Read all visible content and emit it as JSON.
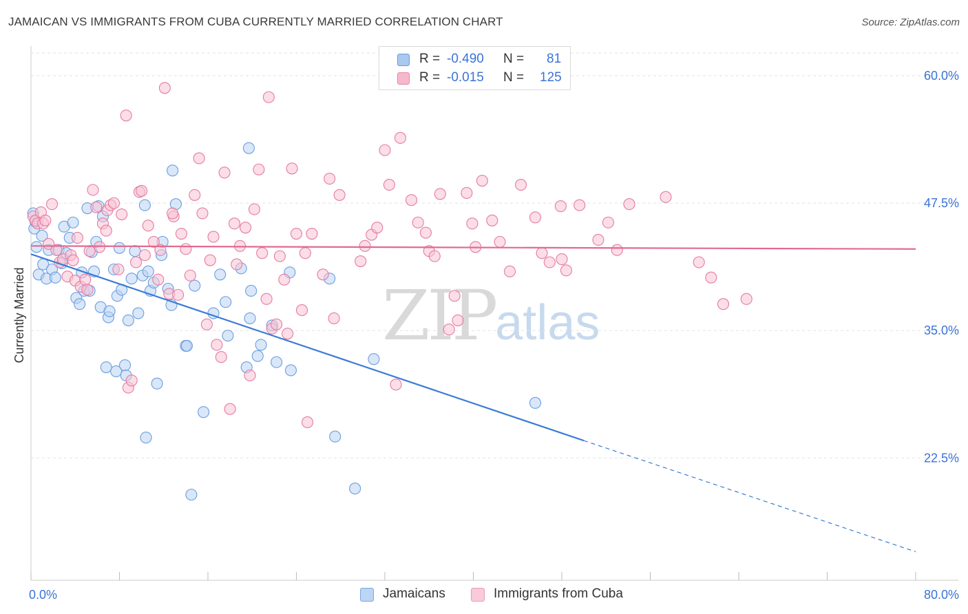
{
  "header": {
    "title": "JAMAICAN VS IMMIGRANTS FROM CUBA CURRENTLY MARRIED CORRELATION CHART",
    "source": "Source: ZipAtlas.com"
  },
  "watermark": {
    "zip": "ZIP",
    "atlas": "atlas"
  },
  "legend_top": {
    "rows": [
      {
        "r_label": "R =",
        "r_value": "-0.490",
        "n_label": "N =",
        "n_value": "81",
        "color": "#a9c8f0",
        "border": "#6b9bd8"
      },
      {
        "r_label": "R =",
        "r_value": "-0.015",
        "n_label": "N =",
        "n_value": "125",
        "color": "#f6b8cb",
        "border": "#e589a6"
      }
    ]
  },
  "legend_bottom": [
    {
      "label": "Jamaicans",
      "color": "#bcd5f5",
      "border": "#7aa6de"
    },
    {
      "label": "Immigrants from Cuba",
      "color": "#f9cad8",
      "border": "#eb9bb4"
    }
  ],
  "chart_data": {
    "type": "scatter",
    "title": "JAMAICAN VS IMMIGRANTS FROM CUBA CURRENTLY MARRIED CORRELATION CHART",
    "xlabel": "",
    "ylabel": "Currently Married",
    "xlim": [
      0,
      80
    ],
    "ylim": [
      10.5,
      62.5
    ],
    "x_tick_labels": [
      "0.0%",
      "80.0%"
    ],
    "y_ticks": [
      22.5,
      35.0,
      47.5,
      60.0
    ],
    "y_tick_labels": [
      "22.5%",
      "35.0%",
      "47.5%",
      "60.0%"
    ],
    "grid": true,
    "legend_position": "top-center",
    "series": [
      {
        "name": "Jamaicans",
        "color": "#6a9ee0",
        "fill": "#b9d3f3",
        "trend": {
          "x": [
            0,
            50
          ],
          "y": [
            42.5,
            24.2
          ],
          "dashed_to": [
            80,
            13.3
          ]
        },
        "points": [
          [
            0.2,
            46.5
          ],
          [
            0.3,
            45.0
          ],
          [
            0.5,
            43.2
          ],
          [
            0.7,
            40.5
          ],
          [
            1.0,
            44.3
          ],
          [
            1.1,
            41.5
          ],
          [
            1.4,
            40.1
          ],
          [
            1.6,
            42.9
          ],
          [
            1.9,
            41.0
          ],
          [
            2.2,
            40.2
          ],
          [
            2.5,
            42.9
          ],
          [
            2.8,
            41.6
          ],
          [
            3.0,
            45.2
          ],
          [
            3.2,
            42.6
          ],
          [
            3.8,
            45.6
          ],
          [
            4.1,
            38.2
          ],
          [
            4.4,
            37.6
          ],
          [
            4.6,
            40.7
          ],
          [
            4.8,
            38.9
          ],
          [
            5.1,
            47.0
          ],
          [
            5.3,
            38.9
          ],
          [
            5.5,
            42.7
          ],
          [
            5.7,
            40.8
          ],
          [
            5.9,
            43.7
          ],
          [
            6.1,
            47.2
          ],
          [
            6.3,
            37.3
          ],
          [
            6.5,
            46.2
          ],
          [
            6.8,
            31.4
          ],
          [
            7.0,
            36.3
          ],
          [
            7.1,
            36.9
          ],
          [
            7.5,
            41.0
          ],
          [
            7.7,
            31.0
          ],
          [
            7.8,
            38.4
          ],
          [
            8.0,
            43.1
          ],
          [
            8.2,
            39.0
          ],
          [
            8.5,
            31.6
          ],
          [
            8.6,
            30.6
          ],
          [
            8.8,
            36.0
          ],
          [
            9.1,
            40.1
          ],
          [
            9.4,
            42.8
          ],
          [
            9.7,
            36.7
          ],
          [
            10.1,
            40.4
          ],
          [
            10.3,
            47.3
          ],
          [
            10.4,
            24.5
          ],
          [
            10.6,
            40.8
          ],
          [
            10.8,
            38.9
          ],
          [
            11.1,
            39.7
          ],
          [
            11.4,
            29.8
          ],
          [
            11.8,
            42.4
          ],
          [
            11.9,
            43.7
          ],
          [
            12.4,
            39.1
          ],
          [
            12.7,
            37.5
          ],
          [
            12.8,
            50.7
          ],
          [
            13.1,
            47.4
          ],
          [
            14.0,
            33.5
          ],
          [
            14.1,
            33.5
          ],
          [
            14.5,
            18.9
          ],
          [
            14.8,
            39.4
          ],
          [
            15.6,
            27.0
          ],
          [
            16.5,
            36.7
          ],
          [
            17.1,
            40.5
          ],
          [
            17.6,
            37.8
          ],
          [
            17.8,
            34.5
          ],
          [
            19.0,
            41.1
          ],
          [
            19.5,
            31.4
          ],
          [
            19.7,
            52.9
          ],
          [
            19.8,
            36.2
          ],
          [
            19.9,
            38.9
          ],
          [
            20.5,
            32.5
          ],
          [
            20.8,
            33.6
          ],
          [
            21.8,
            35.5
          ],
          [
            22.2,
            31.9
          ],
          [
            23.4,
            40.7
          ],
          [
            23.5,
            31.1
          ],
          [
            27.0,
            40.1
          ],
          [
            27.5,
            24.6
          ],
          [
            29.3,
            19.5
          ],
          [
            31.0,
            32.2
          ],
          [
            45.6,
            27.9
          ],
          [
            0.4,
            45.7
          ],
          [
            3.5,
            44.1
          ]
        ]
      },
      {
        "name": "Immigrants from Cuba",
        "color": "#e57ba0",
        "fill": "#f7c2d3",
        "trend": {
          "x": [
            0,
            80
          ],
          "y": [
            43.3,
            43.0
          ]
        },
        "points": [
          [
            0.2,
            46.2
          ],
          [
            0.4,
            45.8
          ],
          [
            0.6,
            45.5
          ],
          [
            0.9,
            46.6
          ],
          [
            1.1,
            45.5
          ],
          [
            1.3,
            45.8
          ],
          [
            1.6,
            43.5
          ],
          [
            1.9,
            47.4
          ],
          [
            2.3,
            42.9
          ],
          [
            2.6,
            41.7
          ],
          [
            2.9,
            42.0
          ],
          [
            3.3,
            40.3
          ],
          [
            3.6,
            42.4
          ],
          [
            3.8,
            41.9
          ],
          [
            4.0,
            39.9
          ],
          [
            4.2,
            44.1
          ],
          [
            4.5,
            39.3
          ],
          [
            4.9,
            40.0
          ],
          [
            5.1,
            39.0
          ],
          [
            5.3,
            42.8
          ],
          [
            5.6,
            48.8
          ],
          [
            5.9,
            47.1
          ],
          [
            6.2,
            43.2
          ],
          [
            6.5,
            45.5
          ],
          [
            6.9,
            46.8
          ],
          [
            7.2,
            47.3
          ],
          [
            7.5,
            47.5
          ],
          [
            7.9,
            41.0
          ],
          [
            8.2,
            46.4
          ],
          [
            8.6,
            56.1
          ],
          [
            8.8,
            29.4
          ],
          [
            9.1,
            30.1
          ],
          [
            9.5,
            41.7
          ],
          [
            9.8,
            48.6
          ],
          [
            10.0,
            48.7
          ],
          [
            10.3,
            42.4
          ],
          [
            10.6,
            45.3
          ],
          [
            11.1,
            43.7
          ],
          [
            11.5,
            40.0
          ],
          [
            11.7,
            42.9
          ],
          [
            12.1,
            58.8
          ],
          [
            12.5,
            38.6
          ],
          [
            12.9,
            46.2
          ],
          [
            13.3,
            38.5
          ],
          [
            13.6,
            44.5
          ],
          [
            14.0,
            43.0
          ],
          [
            14.4,
            40.4
          ],
          [
            14.8,
            48.3
          ],
          [
            15.2,
            51.9
          ],
          [
            15.5,
            46.5
          ],
          [
            15.9,
            35.6
          ],
          [
            16.2,
            41.9
          ],
          [
            16.5,
            44.2
          ],
          [
            16.8,
            33.6
          ],
          [
            17.2,
            32.4
          ],
          [
            17.5,
            50.5
          ],
          [
            18.0,
            27.3
          ],
          [
            18.4,
            45.5
          ],
          [
            18.6,
            41.5
          ],
          [
            18.9,
            43.3
          ],
          [
            19.4,
            45.1
          ],
          [
            19.8,
            30.6
          ],
          [
            20.2,
            46.9
          ],
          [
            20.6,
            50.8
          ],
          [
            20.9,
            42.6
          ],
          [
            21.3,
            38.1
          ],
          [
            21.5,
            57.9
          ],
          [
            21.8,
            35.2
          ],
          [
            22.2,
            35.6
          ],
          [
            22.5,
            42.3
          ],
          [
            22.9,
            40.0
          ],
          [
            23.2,
            34.7
          ],
          [
            23.6,
            50.9
          ],
          [
            24.0,
            44.5
          ],
          [
            24.5,
            37.0
          ],
          [
            25.0,
            26.0
          ],
          [
            25.4,
            44.5
          ],
          [
            26.4,
            40.5
          ],
          [
            27.0,
            49.9
          ],
          [
            27.4,
            36.2
          ],
          [
            27.9,
            48.3
          ],
          [
            29.8,
            41.8
          ],
          [
            30.2,
            43.3
          ],
          [
            30.8,
            44.4
          ],
          [
            31.3,
            45.1
          ],
          [
            32.0,
            52.7
          ],
          [
            32.4,
            49.3
          ],
          [
            33.0,
            29.7
          ],
          [
            33.4,
            53.9
          ],
          [
            34.4,
            47.8
          ],
          [
            35.0,
            45.6
          ],
          [
            35.7,
            44.6
          ],
          [
            36.0,
            42.8
          ],
          [
            36.5,
            42.3
          ],
          [
            37.0,
            48.4
          ],
          [
            37.8,
            35.1
          ],
          [
            38.3,
            38.4
          ],
          [
            38.6,
            36.0
          ],
          [
            39.4,
            48.5
          ],
          [
            39.9,
            45.5
          ],
          [
            40.2,
            43.2
          ],
          [
            40.8,
            49.7
          ],
          [
            41.7,
            45.8
          ],
          [
            42.4,
            43.7
          ],
          [
            43.3,
            40.8
          ],
          [
            44.3,
            49.3
          ],
          [
            45.6,
            46.1
          ],
          [
            46.2,
            42.6
          ],
          [
            46.9,
            41.7
          ],
          [
            47.9,
            47.2
          ],
          [
            48.0,
            42.0
          ],
          [
            48.4,
            40.9
          ],
          [
            49.6,
            47.3
          ],
          [
            51.3,
            43.9
          ],
          [
            52.2,
            45.6
          ],
          [
            53.0,
            42.9
          ],
          [
            54.1,
            47.4
          ],
          [
            57.4,
            48.1
          ],
          [
            60.4,
            41.7
          ],
          [
            61.5,
            40.2
          ],
          [
            62.6,
            37.6
          ],
          [
            64.7,
            38.1
          ],
          [
            24.8,
            42.6
          ],
          [
            12.8,
            46.5
          ],
          [
            6.8,
            44.8
          ]
        ]
      }
    ]
  }
}
